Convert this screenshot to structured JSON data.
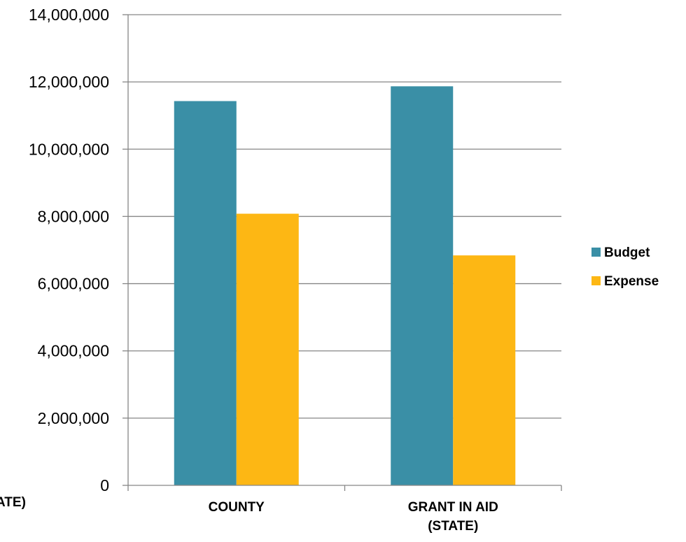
{
  "chart_data": {
    "type": "bar",
    "categories": [
      "COUNTY",
      "GRANT IN AID (STATE)"
    ],
    "category_lines": [
      [
        "COUNTY"
      ],
      [
        "GRANT IN AID",
        "(STATE)"
      ]
    ],
    "series": [
      {
        "name": "Budget",
        "values": [
          11430000,
          11870000
        ],
        "color": "#3A8FA6"
      },
      {
        "name": "Expense",
        "values": [
          8080000,
          6840000
        ],
        "color": "#FDB714"
      }
    ],
    "title": "",
    "xlabel": "",
    "ylabel": "",
    "ylim": [
      0,
      14000000
    ],
    "yticks": [
      0,
      2000000,
      4000000,
      6000000,
      8000000,
      10000000,
      12000000,
      14000000
    ],
    "ytick_labels": [
      "0",
      "2,000,000",
      "4,000,000",
      "6,000,000",
      "8,000,000",
      "10,000,000",
      "12,000,000",
      "14,000,000"
    ],
    "grid": true,
    "legend_position": "right",
    "clipped_label": "ATE)",
    "gridline_color": "#868686",
    "axis_color": "#868686"
  }
}
